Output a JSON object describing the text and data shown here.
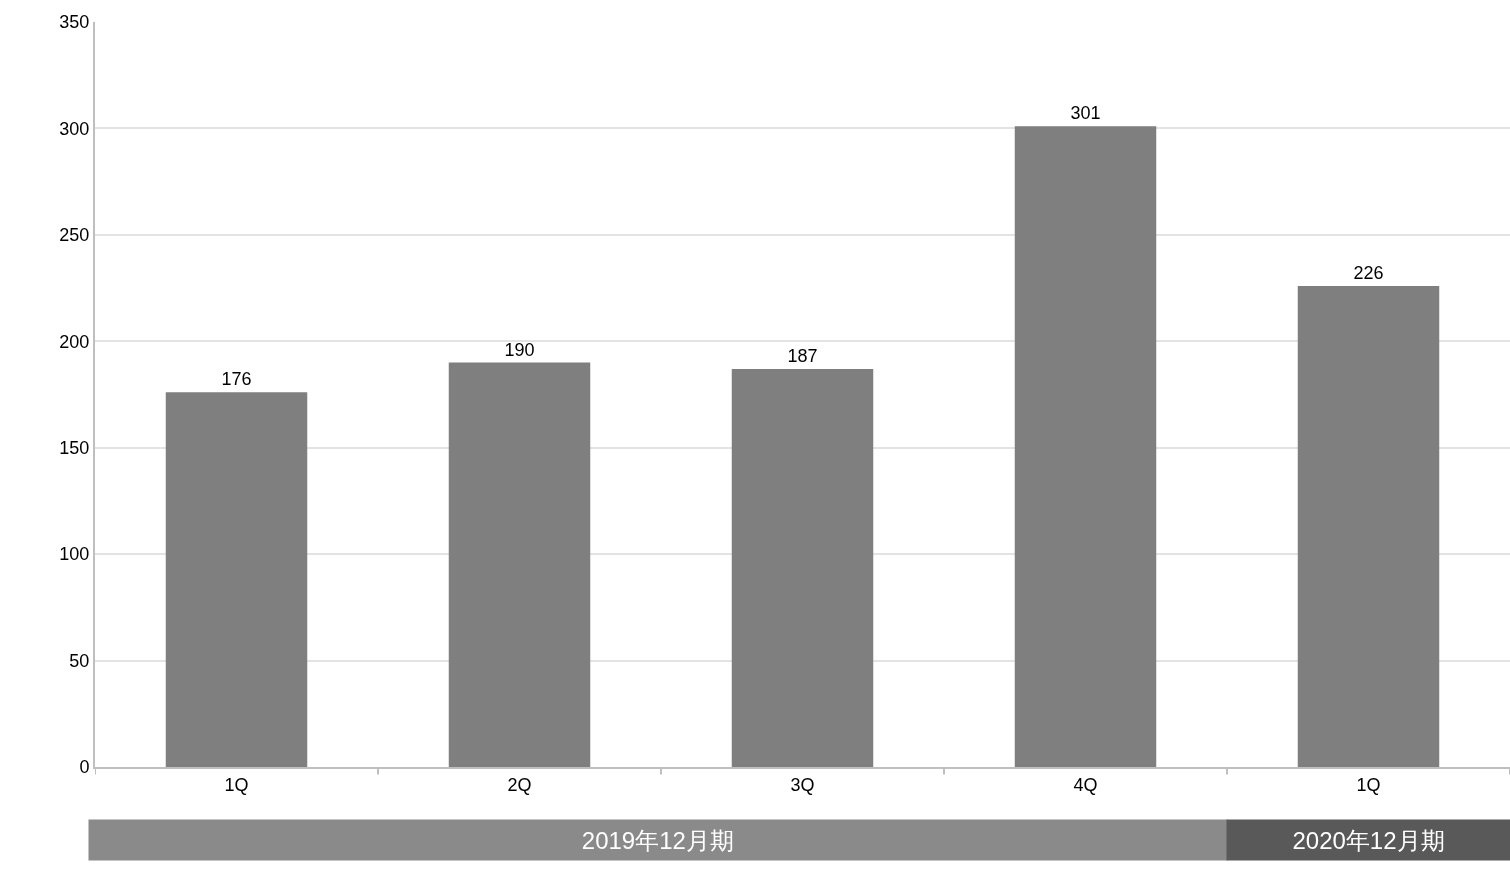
{
  "chart_data": {
    "type": "bar",
    "categories": [
      "1Q",
      "2Q",
      "3Q",
      "4Q",
      "1Q"
    ],
    "values": [
      176,
      190,
      187,
      301,
      226
    ],
    "color": "#7f7f7f",
    "ylim": [
      0,
      350
    ],
    "yticks": [
      0,
      50,
      100,
      150,
      200,
      250,
      300,
      350
    ],
    "grid": "y",
    "data_labels": true,
    "annotations": [
      "2019年12月期",
      "2020年12月期"
    ]
  }
}
